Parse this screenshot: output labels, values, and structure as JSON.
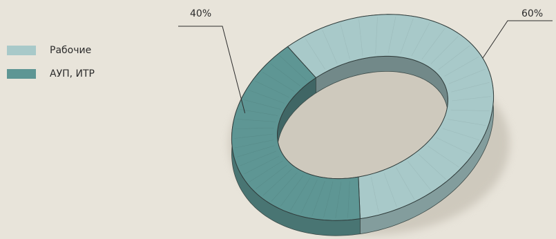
{
  "chart_data": {
    "type": "pie",
    "title": "",
    "categories": [
      "Рабочие",
      "АУП, ИТР"
    ],
    "values": [
      60,
      40
    ],
    "value_labels": [
      "60%",
      "40%"
    ],
    "colors": [
      "#a8c9c9",
      "#5e9694"
    ],
    "legend_position": "left",
    "style": "3d-donut"
  }
}
